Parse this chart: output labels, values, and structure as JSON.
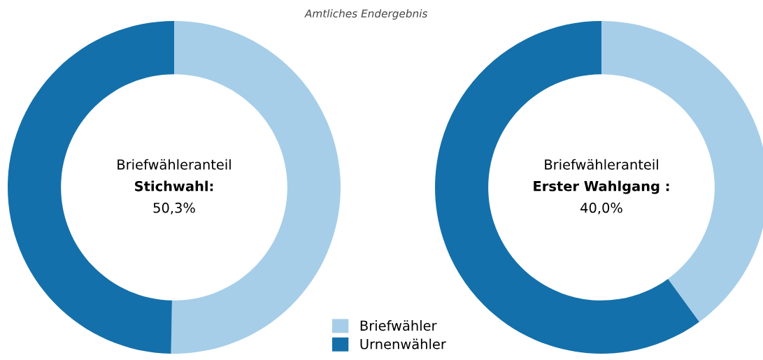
{
  "chart_data": [
    {
      "type": "donut",
      "title": "Amtliches Endergebnis",
      "categories": [
        "Briefwähler",
        "Urnenwähler"
      ],
      "values": [
        50.3,
        49.7
      ],
      "colors": [
        "#a6cee8",
        "#1470aa"
      ],
      "legend": "bottom",
      "annotations": [
        "Briefwähleranteil",
        "Stichwahl:",
        "50,3%"
      ]
    },
    {
      "type": "donut",
      "categories": [
        null,
        null
      ],
      "values": [
        40.0,
        60.0
      ],
      "colors": [
        "#a6cee8",
        "#1470aa"
      ],
      "annotations": [
        "Briefwähleranteil",
        "Erster Wahlgang :",
        "40,0%"
      ]
    }
  ]
}
